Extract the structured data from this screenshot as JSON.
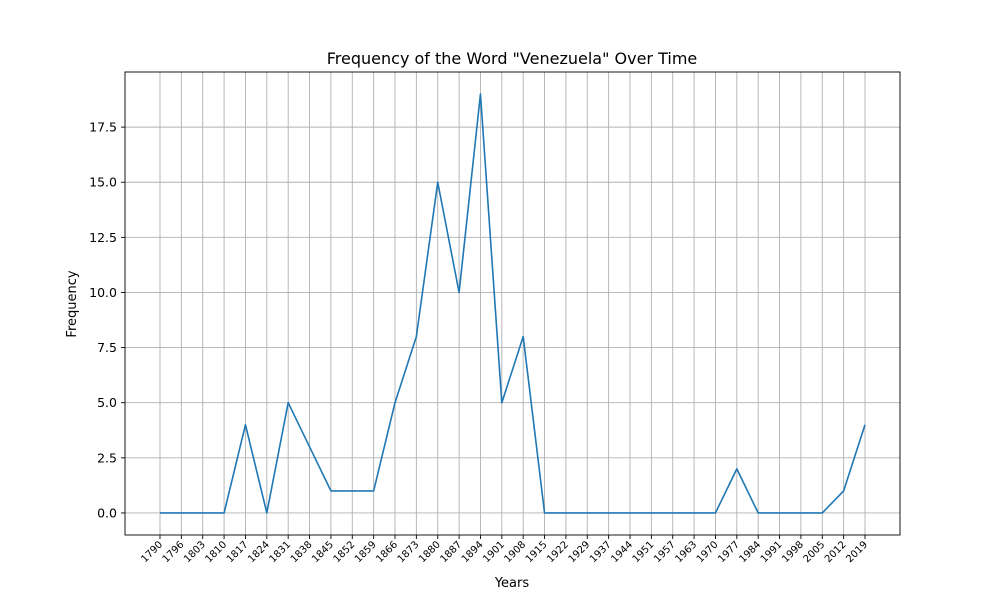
{
  "chart_data": {
    "type": "line",
    "title": "Frequency of the Word \"Venezuela\" Over Time",
    "xlabel": "Years",
    "ylabel": "Frequency",
    "ylim": [
      -1.0,
      20.0
    ],
    "yticks": [
      0.0,
      2.5,
      5.0,
      7.5,
      10.0,
      12.5,
      15.0,
      17.5
    ],
    "ytick_labels": [
      "0.0",
      "2.5",
      "5.0",
      "7.5",
      "10.0",
      "12.5",
      "15.0",
      "17.5"
    ],
    "grid": true,
    "x": [
      "1790",
      "1796",
      "1803",
      "1810",
      "1817",
      "1824",
      "1831",
      "1838",
      "1845",
      "1852",
      "1859",
      "1866",
      "1873",
      "1880",
      "1887",
      "1894",
      "1901",
      "1908",
      "1915",
      "1922",
      "1929",
      "1937",
      "1944",
      "1951",
      "1957",
      "1963",
      "1970",
      "1977",
      "1984",
      "1991",
      "1998",
      "2005",
      "2012",
      "2019"
    ],
    "series": [
      {
        "color": "#1f77b4",
        "values": [
          0,
          0,
          0,
          0,
          4,
          0,
          5,
          3,
          1,
          1,
          1,
          5,
          8,
          15,
          10,
          19,
          5,
          8,
          0,
          0,
          0,
          0,
          0,
          0,
          0,
          0,
          0,
          2,
          0,
          0,
          0,
          0,
          1,
          4
        ]
      }
    ]
  }
}
